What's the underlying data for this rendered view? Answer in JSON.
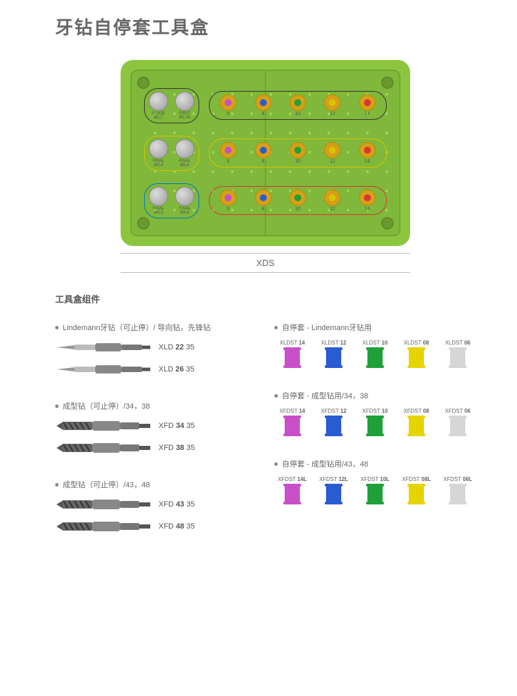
{
  "title": "牙钻自停套工具盒",
  "caption": "XDS",
  "section_title": "工具盒组件",
  "box": {
    "outer_color": "#8cc63f",
    "inner_color": "#7fb83a",
    "rows": [
      {
        "left_outline": "outline-black",
        "right_outline": "outline-black",
        "drills": [
          {
            "name": "GUIDE",
            "sub": "Ø1,7"
          },
          {
            "name": "FIRST",
            "sub": "Ø2,35"
          }
        ],
        "stops": [
          "6",
          "8",
          "10",
          "12",
          "14"
        ]
      },
      {
        "left_outline": "outline-yellow",
        "right_outline": "outline-yellow",
        "drills": [
          {
            "name": "FINAL",
            "sub": "Ø3,4"
          },
          {
            "name": "FINAL",
            "sub": "Ø3,8"
          }
        ],
        "stops": [
          "6",
          "8",
          "10",
          "12",
          "14"
        ]
      },
      {
        "left_outline": "outline-blue",
        "right_outline": "outline-red",
        "drills": [
          {
            "name": "FINAL",
            "sub": "Ø4,3"
          },
          {
            "name": "FINAL",
            "sub": "Ø4,8"
          }
        ],
        "stops": [
          "6",
          "8",
          "10",
          "12",
          "14"
        ]
      }
    ],
    "stop_ring_colors": [
      "#c94fc9",
      "#2b5bd1",
      "#1fa038",
      "#d9c400",
      "#d33"
    ]
  },
  "drill_groups": [
    {
      "bullet": "Lindemann牙钻（可止停）/ 导向钻，先锋钻",
      "type": "pilot",
      "items": [
        {
          "pre": "XLD ",
          "b": "22",
          "post": " 35"
        },
        {
          "pre": "XLD ",
          "b": "26",
          "post": " 35"
        }
      ]
    },
    {
      "bullet": "成型钻（可止停）/34，38",
      "type": "twist",
      "items": [
        {
          "pre": "XFD ",
          "b": "34",
          "post": " 35"
        },
        {
          "pre": "XFD ",
          "b": "38",
          "post": " 35"
        }
      ]
    },
    {
      "bullet": "成型钻（可止停）/43，48",
      "type": "twist",
      "items": [
        {
          "pre": "XFD ",
          "b": "43",
          "post": " 35"
        },
        {
          "pre": "XFD ",
          "b": "48",
          "post": " 35"
        }
      ]
    }
  ],
  "stop_groups": [
    {
      "bullet": "自停套 - Lindemann牙钻用",
      "items": [
        {
          "pre": "XLDST ",
          "b": "14",
          "color": "#c94fc9"
        },
        {
          "pre": "XLDST ",
          "b": "12",
          "color": "#2b5bd1"
        },
        {
          "pre": "XLDST ",
          "b": "10",
          "color": "#1fa038"
        },
        {
          "pre": "XLDST ",
          "b": "08",
          "color": "#e6d400"
        },
        {
          "pre": "XLDST ",
          "b": "06",
          "color": "#d6d6d6"
        }
      ]
    },
    {
      "bullet": "自停套 - 成型钻用/34，38",
      "items": [
        {
          "pre": "XFDST ",
          "b": "14",
          "color": "#c94fc9"
        },
        {
          "pre": "XFDST ",
          "b": "12",
          "color": "#2b5bd1"
        },
        {
          "pre": "XFDST ",
          "b": "10",
          "color": "#1fa038"
        },
        {
          "pre": "XFDST ",
          "b": "08",
          "color": "#e6d400"
        },
        {
          "pre": "XFDST ",
          "b": "06",
          "color": "#d6d6d6"
        }
      ]
    },
    {
      "bullet": "自停套 - 成型钻用/43，48",
      "items": [
        {
          "pre": "XFDST ",
          "b": "14L",
          "color": "#c94fc9"
        },
        {
          "pre": "XFDST ",
          "b": "12L",
          "color": "#2b5bd1"
        },
        {
          "pre": "XFDST ",
          "b": "10L",
          "color": "#1fa038"
        },
        {
          "pre": "XFDST ",
          "b": "08L",
          "color": "#e6d400"
        },
        {
          "pre": "XFDST ",
          "b": "06L",
          "color": "#d6d6d6"
        }
      ]
    }
  ]
}
